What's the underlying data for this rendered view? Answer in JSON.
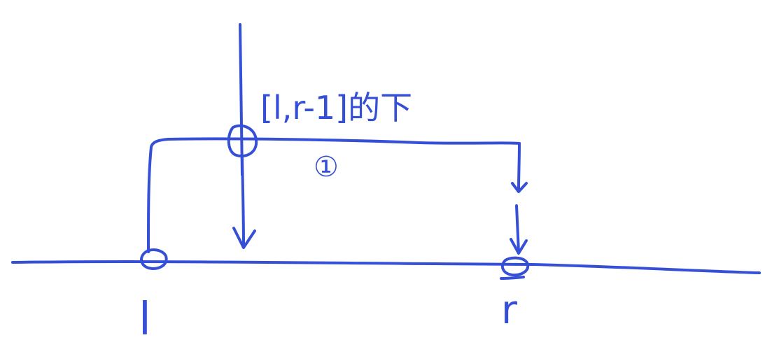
{
  "diagram": {
    "ink_color": "#3550d6",
    "range_label": "[l,r-1]的下",
    "step_label": "①",
    "left_point_label": "l",
    "right_point_label": "r"
  }
}
